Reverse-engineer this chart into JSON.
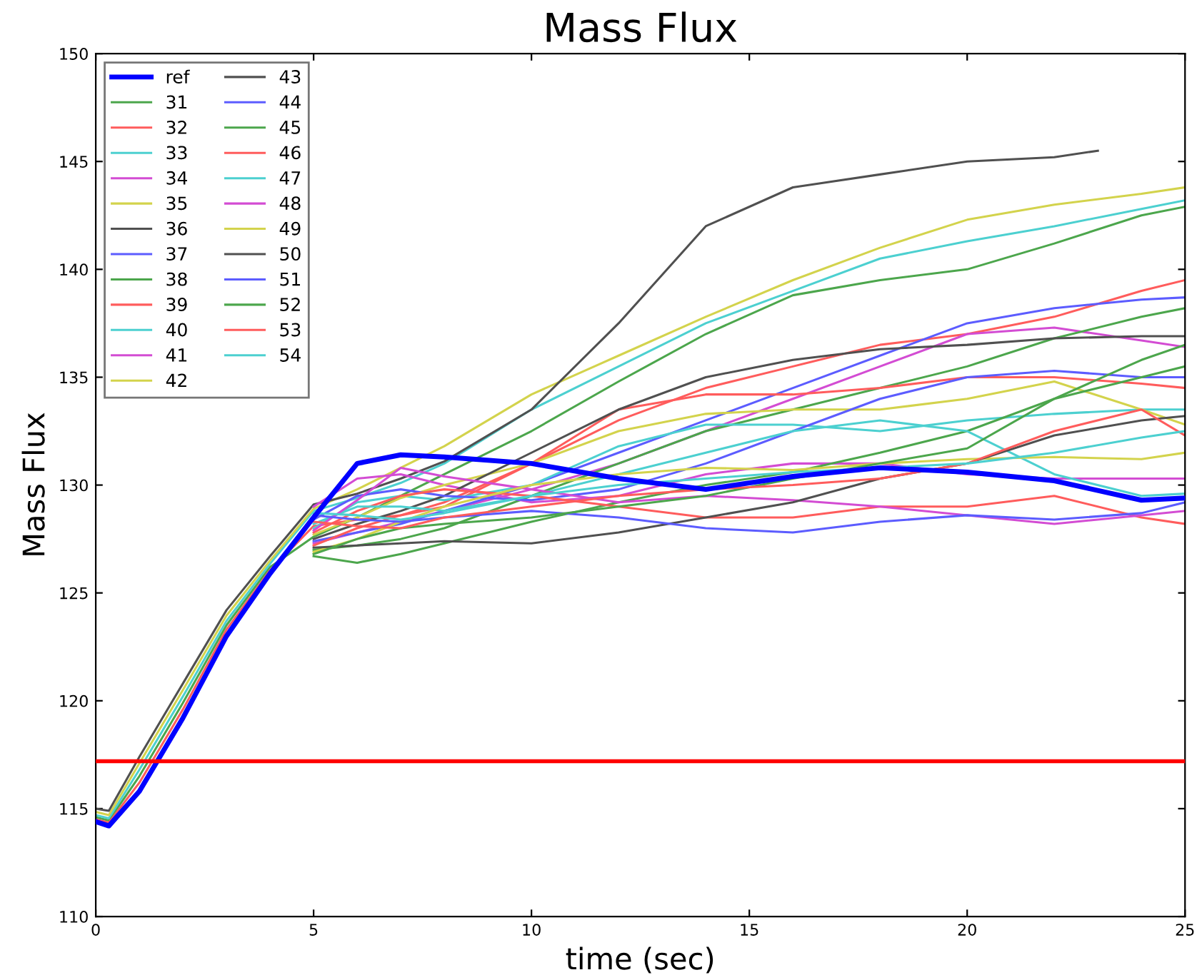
{
  "chart_data": {
    "type": "line",
    "title": "Mass Flux",
    "xlabel": "time (sec)",
    "ylabel": "Mass Flux",
    "x": [
      0,
      0.3,
      1,
      2,
      3,
      4,
      5,
      6,
      7,
      8,
      10,
      12,
      14,
      16,
      18,
      20,
      22,
      24,
      25
    ],
    "xlim": [
      0,
      25
    ],
    "xticks": [
      0,
      5,
      10,
      15,
      20,
      25
    ],
    "ylim": [
      110,
      150
    ],
    "yticks": [
      110,
      115,
      120,
      125,
      130,
      135,
      140,
      145,
      150
    ],
    "grid": false,
    "legend": "top left",
    "line_style": "solid",
    "marker": "none",
    "ref_lines": [
      {
        "axis": "y",
        "value": 117.2,
        "color": "#ff0000"
      }
    ],
    "series": [
      {
        "name": "ref",
        "color": "#0000ff",
        "values": [
          114.4,
          114.2,
          115.8,
          119.2,
          123.0,
          125.9,
          128.5,
          131,
          131.4,
          131.3,
          131,
          130.3,
          129.8,
          130.4,
          130.8,
          130.6,
          130.2,
          129.3,
          129.4
        ]
      },
      {
        "name": "31",
        "color": "#4ca64c",
        "values": [
          114.6,
          114.45,
          116.5,
          119.9,
          123.5,
          126.2,
          127.6,
          128.5,
          129.5,
          130.5,
          132.5,
          134.8,
          137,
          138.8,
          139.5,
          140,
          141.2,
          142.5,
          142.9
        ]
      },
      {
        "name": "32",
        "color": "#ff5c5c",
        "values": [
          114.5,
          114.35,
          116.2,
          119.6,
          123.3,
          126.05,
          128.1,
          128.4,
          128.6,
          129,
          131,
          133,
          134.5,
          135.5,
          136.5,
          137,
          137.8,
          139,
          139.5
        ]
      },
      {
        "name": "33",
        "color": "#4cd0d0",
        "values": [
          114.7,
          114.55,
          116.8,
          120.2,
          123.7,
          126.35,
          128.8,
          129.4,
          130.1,
          131,
          133.5,
          135.5,
          137.5,
          139,
          140.5,
          141.3,
          142,
          142.8,
          143.2
        ]
      },
      {
        "name": "34",
        "color": "#d34cd3",
        "values": [
          null,
          null,
          null,
          null,
          null,
          null,
          127.3,
          127.8,
          128.3,
          128.8,
          129.8,
          131,
          132.5,
          134,
          135.5,
          137,
          137.3,
          136.7,
          136.4
        ]
      },
      {
        "name": "35",
        "color": "#d3d34c",
        "values": [
          114.85,
          114.7,
          117.1,
          120.5,
          123.95,
          126.5,
          128.9,
          129.8,
          130.8,
          131.8,
          134.2,
          136,
          137.8,
          139.5,
          141,
          142.3,
          143,
          143.5,
          143.8
        ]
      },
      {
        "name": "36",
        "color": "#505050",
        "x": [
          0,
          0.3,
          1,
          2,
          3,
          4,
          5,
          6,
          7,
          8,
          10,
          12,
          14,
          16,
          18,
          20,
          22,
          23
        ],
        "values": [
          115.0,
          114.9,
          117.4,
          120.8,
          124.2,
          126.7,
          129.1,
          129.6,
          130.3,
          131.1,
          133.5,
          137.5,
          142,
          143.8,
          144.4,
          145,
          145.2,
          145.5
        ]
      },
      {
        "name": "37",
        "color": "#5c5cff",
        "values": [
          null,
          null,
          null,
          null,
          null,
          null,
          127.4,
          127.8,
          128.2,
          128.8,
          130,
          131.5,
          133,
          134.5,
          136,
          137.5,
          138.2,
          138.6,
          138.7
        ]
      },
      {
        "name": "38",
        "color": "#4ca64c",
        "values": [
          null,
          null,
          null,
          null,
          null,
          null,
          127.0,
          127.2,
          127.5,
          128,
          129.5,
          131,
          132.5,
          133.5,
          134.5,
          135.5,
          136.8,
          137.8,
          138.2
        ]
      },
      {
        "name": "39",
        "color": "#ff5c5c",
        "values": [
          null,
          null,
          null,
          null,
          null,
          null,
          127.2,
          128,
          128.6,
          129.2,
          131,
          133.5,
          134.2,
          134.2,
          134.5,
          135,
          135,
          134.7,
          134.5
        ]
      },
      {
        "name": "40",
        "color": "#4cd0d0",
        "values": [
          null,
          null,
          null,
          null,
          null,
          null,
          128.0,
          129.2,
          129.5,
          129.3,
          130,
          131.8,
          132.8,
          132.8,
          132.5,
          133,
          133.3,
          133.5,
          133.5
        ]
      },
      {
        "name": "41",
        "color": "#d34cd3",
        "values": [
          null,
          null,
          null,
          null,
          null,
          null,
          129.0,
          130.3,
          130.5,
          130,
          129.2,
          129.5,
          130.5,
          131,
          131,
          130.5,
          130.3,
          130.3,
          130.3
        ]
      },
      {
        "name": "42",
        "color": "#d3d34c",
        "values": [
          null,
          null,
          null,
          null,
          null,
          null,
          127.7,
          128.5,
          129.4,
          130,
          131,
          132.5,
          133.3,
          133.5,
          133.5,
          134,
          134.8,
          133.5,
          132.8
        ]
      },
      {
        "name": "43",
        "color": "#505050",
        "values": [
          null,
          null,
          null,
          null,
          null,
          null,
          127.5,
          128.2,
          128.8,
          129.5,
          131.5,
          133.5,
          135,
          135.8,
          136.3,
          136.5,
          136.8,
          136.9,
          136.9
        ]
      },
      {
        "name": "44",
        "color": "#5c5cff",
        "values": [
          null,
          null,
          null,
          null,
          null,
          null,
          128.4,
          129.5,
          129.8,
          129.5,
          129.3,
          129.8,
          131,
          132.5,
          134,
          135,
          135.3,
          135,
          135
        ]
      },
      {
        "name": "45",
        "color": "#4ca64c",
        "values": [
          null,
          null,
          null,
          null,
          null,
          null,
          126.7,
          126.4,
          126.8,
          127.3,
          128.3,
          129.2,
          130,
          130.6,
          131.5,
          132.5,
          134,
          135,
          135.5
        ]
      },
      {
        "name": "46",
        "color": "#ff5c5c",
        "values": [
          null,
          null,
          null,
          null,
          null,
          null,
          127.8,
          128.8,
          129.5,
          129.8,
          129.5,
          129,
          128.5,
          128.5,
          129,
          129,
          129.5,
          128.5,
          128.2
        ]
      },
      {
        "name": "47",
        "color": "#4cd0d0",
        "values": [
          null,
          null,
          null,
          null,
          null,
          null,
          128.2,
          129,
          129,
          128.8,
          129.5,
          130.5,
          131.5,
          132.5,
          133,
          132.5,
          130.5,
          129.5,
          129.6
        ]
      },
      {
        "name": "48",
        "color": "#d34cd3",
        "values": [
          null,
          null,
          null,
          null,
          null,
          null,
          127.9,
          129.3,
          130.8,
          130.4,
          129.8,
          129.2,
          129.5,
          129.3,
          129,
          128.6,
          128.2,
          128.6,
          128.8
        ]
      },
      {
        "name": "49",
        "color": "#d3d34c",
        "values": [
          null,
          null,
          null,
          null,
          null,
          null,
          126.9,
          127.5,
          128.3,
          129,
          130,
          130.5,
          130.8,
          130.7,
          131,
          131.2,
          131.3,
          131.2,
          131.5
        ]
      },
      {
        "name": "50",
        "color": "#505050",
        "values": [
          null,
          null,
          null,
          null,
          null,
          null,
          127.1,
          127.2,
          127.3,
          127.4,
          127.3,
          127.8,
          128.5,
          129.2,
          130.3,
          131,
          132.3,
          133,
          133.2
        ]
      },
      {
        "name": "51",
        "color": "#5c5cff",
        "values": [
          null,
          null,
          null,
          null,
          null,
          null,
          128.6,
          128.4,
          128.3,
          128.5,
          128.8,
          128.5,
          128,
          127.8,
          128.3,
          128.6,
          128.4,
          128.7,
          129.2
        ]
      },
      {
        "name": "52",
        "color": "#4ca64c",
        "values": [
          null,
          null,
          null,
          null,
          null,
          null,
          126.8,
          127.5,
          128,
          128.2,
          128.5,
          129,
          129.5,
          130.3,
          131,
          131.7,
          134,
          135.8,
          136.5
        ]
      },
      {
        "name": "53",
        "color": "#ff5c5c",
        "values": [
          null,
          null,
          null,
          null,
          null,
          null,
          128.3,
          128.1,
          128,
          128.5,
          129,
          129.5,
          129.8,
          130,
          130.3,
          131,
          132.5,
          133.5,
          132.3
        ]
      },
      {
        "name": "54",
        "color": "#4cd0d0",
        "values": [
          null,
          null,
          null,
          null,
          null,
          null,
          128.7,
          128.6,
          128.4,
          128.7,
          129.5,
          130,
          130.3,
          130.6,
          130.8,
          131,
          131.5,
          132.2,
          132.5
        ]
      }
    ]
  }
}
